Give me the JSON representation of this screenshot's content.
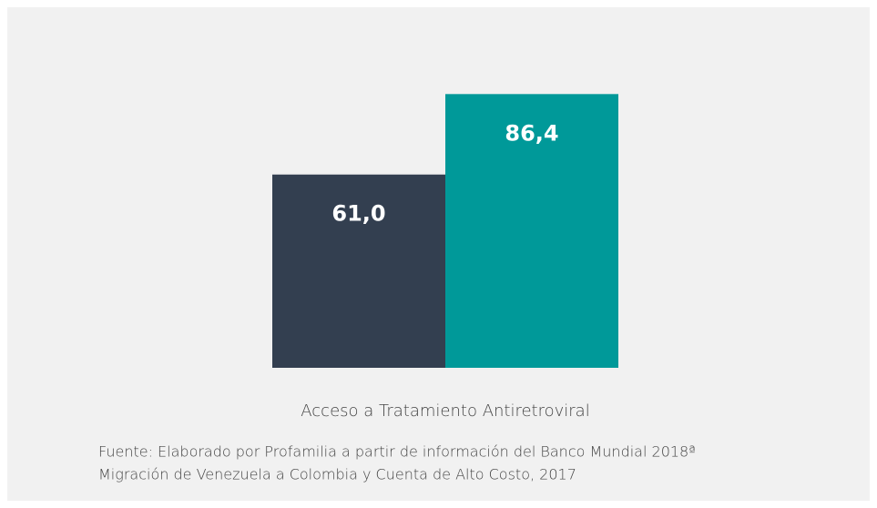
{
  "chart_data": {
    "type": "bar",
    "categories": [
      "Acceso a Tratamiento Antiretroviral"
    ],
    "series": [
      {
        "color": "#333f50",
        "values": [
          61.0
        ],
        "value_labels": [
          "61,0"
        ]
      },
      {
        "color": "#009999",
        "values": [
          86.4
        ],
        "value_labels": [
          "86,4"
        ]
      }
    ],
    "ylim": [
      0,
      100
    ],
    "source": [
      "Fuente: Elaborado por Profamilia a partir de información del Banco Mundial 2018ª",
      "Migración de Venezuela a Colombia y Cuenta de Alto Costo, 2017"
    ]
  }
}
